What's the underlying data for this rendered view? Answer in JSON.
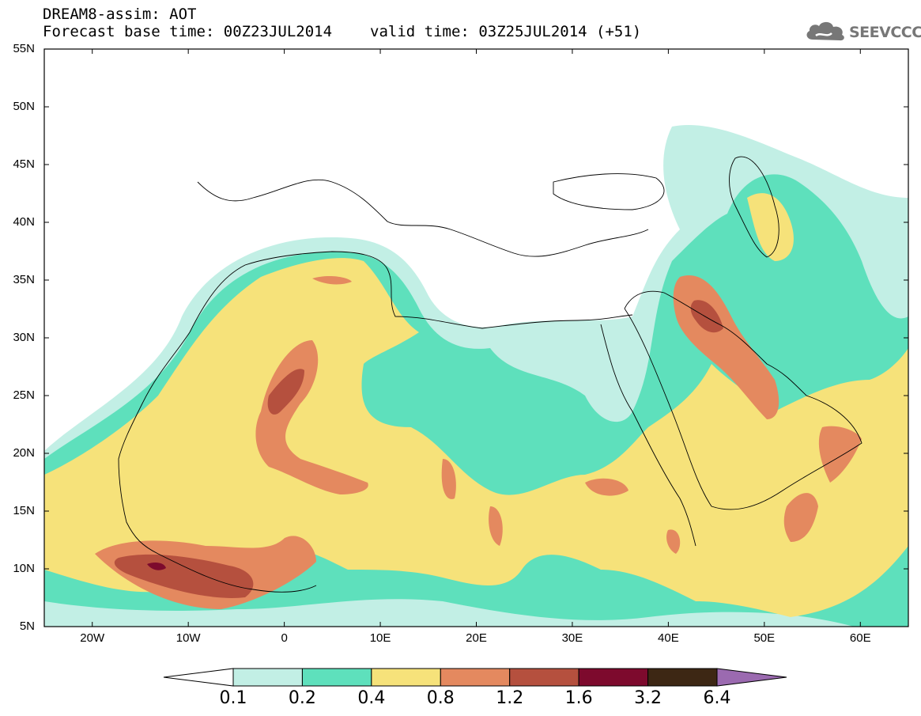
{
  "header": {
    "title_line1": "DREAM8-assim: AOT",
    "base_time": "Forecast base time: 00Z23JUL2014",
    "valid_time": "valid time: 03Z25JUL2014 (+51)",
    "logo_text": "SEEVCCC",
    "logo_icon": "cloud-icon"
  },
  "map": {
    "lat_range": [
      5,
      55
    ],
    "lon_range": [
      -25,
      65
    ],
    "lat_labels": [
      "55N",
      "50N",
      "45N",
      "40N",
      "35N",
      "30N",
      "25N",
      "20N",
      "15N",
      "10N",
      "5N"
    ],
    "lon_labels": [
      "20W",
      "10W",
      "0",
      "10E",
      "20E",
      "30E",
      "40E",
      "50E",
      "60E"
    ]
  },
  "colorbar": {
    "levels": [
      "0.1",
      "0.2",
      "0.4",
      "0.8",
      "1.2",
      "1.6",
      "3.2",
      "6.4"
    ],
    "colors": [
      "#ffffff",
      "#c2efe5",
      "#5ee0bc",
      "#f6e27a",
      "#e4895f",
      "#b5503e",
      "#7d0a2d",
      "#3d2714",
      "#9b6ab0"
    ]
  }
}
